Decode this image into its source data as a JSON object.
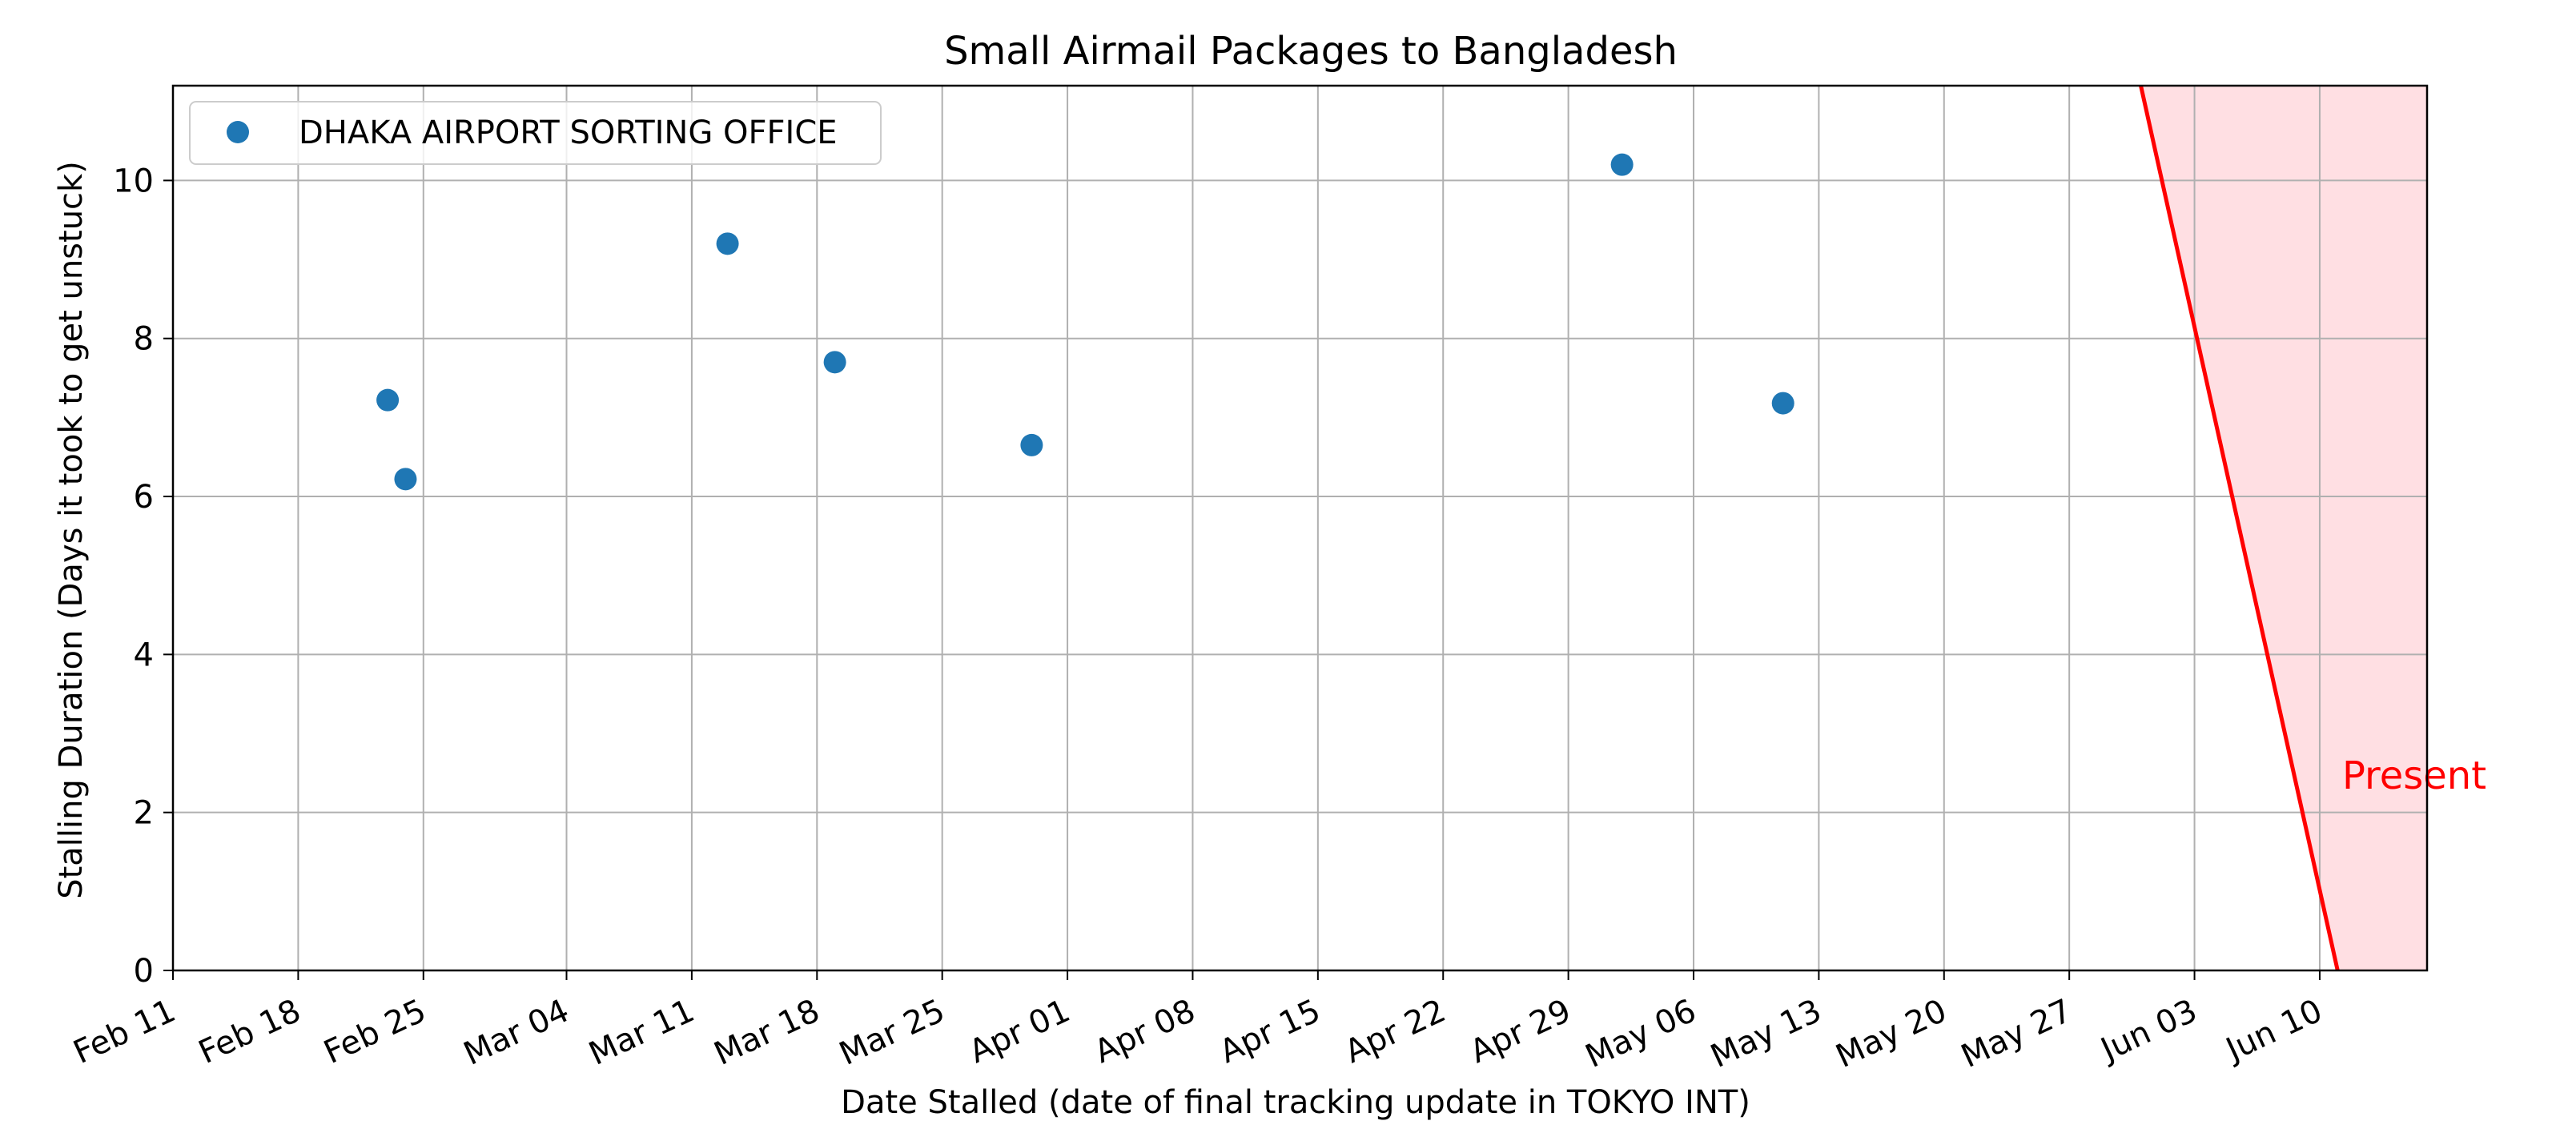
{
  "chart_data": {
    "type": "scatter",
    "title": "Small Airmail Packages to Bangladesh",
    "xlabel": "Date Stalled (date of final tracking update in TOKYO INT)",
    "ylabel": "Stalling Duration (Days it took to get unstuck)",
    "xlim": [
      "2024-02-11",
      "2024-06-16"
    ],
    "ylim": [
      0,
      11.2
    ],
    "x_ticks": [
      "2024-02-11",
      "2024-02-18",
      "2024-02-25",
      "2024-03-04",
      "2024-03-11",
      "2024-03-18",
      "2024-03-25",
      "2024-04-01",
      "2024-04-08",
      "2024-04-15",
      "2024-04-22",
      "2024-04-29",
      "2024-05-06",
      "2024-05-13",
      "2024-05-20",
      "2024-05-27",
      "2024-06-03",
      "2024-06-10"
    ],
    "x_tick_labels": [
      "Feb 11",
      "Feb 18",
      "Feb 25",
      "Mar 04",
      "Mar 11",
      "Mar 18",
      "Mar 25",
      "Apr 01",
      "Apr 08",
      "Apr 15",
      "Apr 22",
      "Apr 29",
      "May 06",
      "May 13",
      "May 20",
      "May 27",
      "Jun 03",
      "Jun 10"
    ],
    "y_ticks": [
      0,
      2,
      4,
      6,
      8,
      10
    ],
    "y_tick_labels": [
      "0",
      "2",
      "4",
      "6",
      "8",
      "10"
    ],
    "grid": true,
    "legend_position": "top-left",
    "series": [
      {
        "name": "DHAKA AIRPORT SORTING OFFICE",
        "color": "#1f77b4",
        "points": [
          {
            "x": "2024-02-23",
            "y": 7.22
          },
          {
            "x": "2024-02-24",
            "y": 6.22
          },
          {
            "x": "2024-03-13",
            "y": 9.2
          },
          {
            "x": "2024-03-19",
            "y": 7.7
          },
          {
            "x": "2024-03-30",
            "y": 6.65
          },
          {
            "x": "2024-05-02",
            "y": 10.2
          },
          {
            "x": "2024-05-11",
            "y": 7.18
          }
        ]
      }
    ],
    "present_line": {
      "label": "Present",
      "color": "#ff0000",
      "fill_color": "#ffdfe3",
      "from": {
        "x": "2024-05-31",
        "y": 11.2
      },
      "to": {
        "x": "2024-06-11",
        "y": 0
      }
    }
  }
}
